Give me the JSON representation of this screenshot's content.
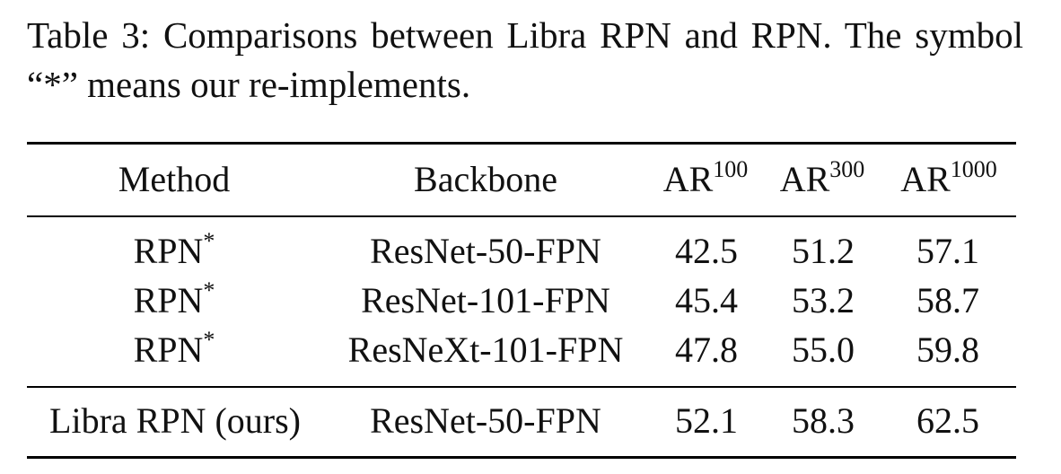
{
  "caption": "Table 3: Comparisons between Libra RPN and RPN. The symbol “*” means our re-implements.",
  "table": {
    "headers": [
      {
        "text": "Method",
        "sup": ""
      },
      {
        "text": "Backbone",
        "sup": ""
      },
      {
        "text": "AR",
        "sup": "100"
      },
      {
        "text": "AR",
        "sup": "300"
      },
      {
        "text": "AR",
        "sup": "1000"
      }
    ],
    "rows": [
      {
        "method": "RPN",
        "method_sup": "*",
        "backbone": "ResNet-50-FPN",
        "ar100": "42.5",
        "ar300": "51.2",
        "ar1000": "57.1"
      },
      {
        "method": "RPN",
        "method_sup": "*",
        "backbone": "ResNet-101-FPN",
        "ar100": "45.4",
        "ar300": "53.2",
        "ar1000": "58.7"
      },
      {
        "method": "RPN",
        "method_sup": "*",
        "backbone": "ResNeXt-101-FPN",
        "ar100": "47.8",
        "ar300": "55.0",
        "ar1000": "59.8"
      },
      {
        "method": "Libra RPN (ours)",
        "method_sup": "",
        "backbone": "ResNet-50-FPN",
        "ar100": "52.1",
        "ar300": "58.3",
        "ar1000": "62.5"
      }
    ]
  }
}
